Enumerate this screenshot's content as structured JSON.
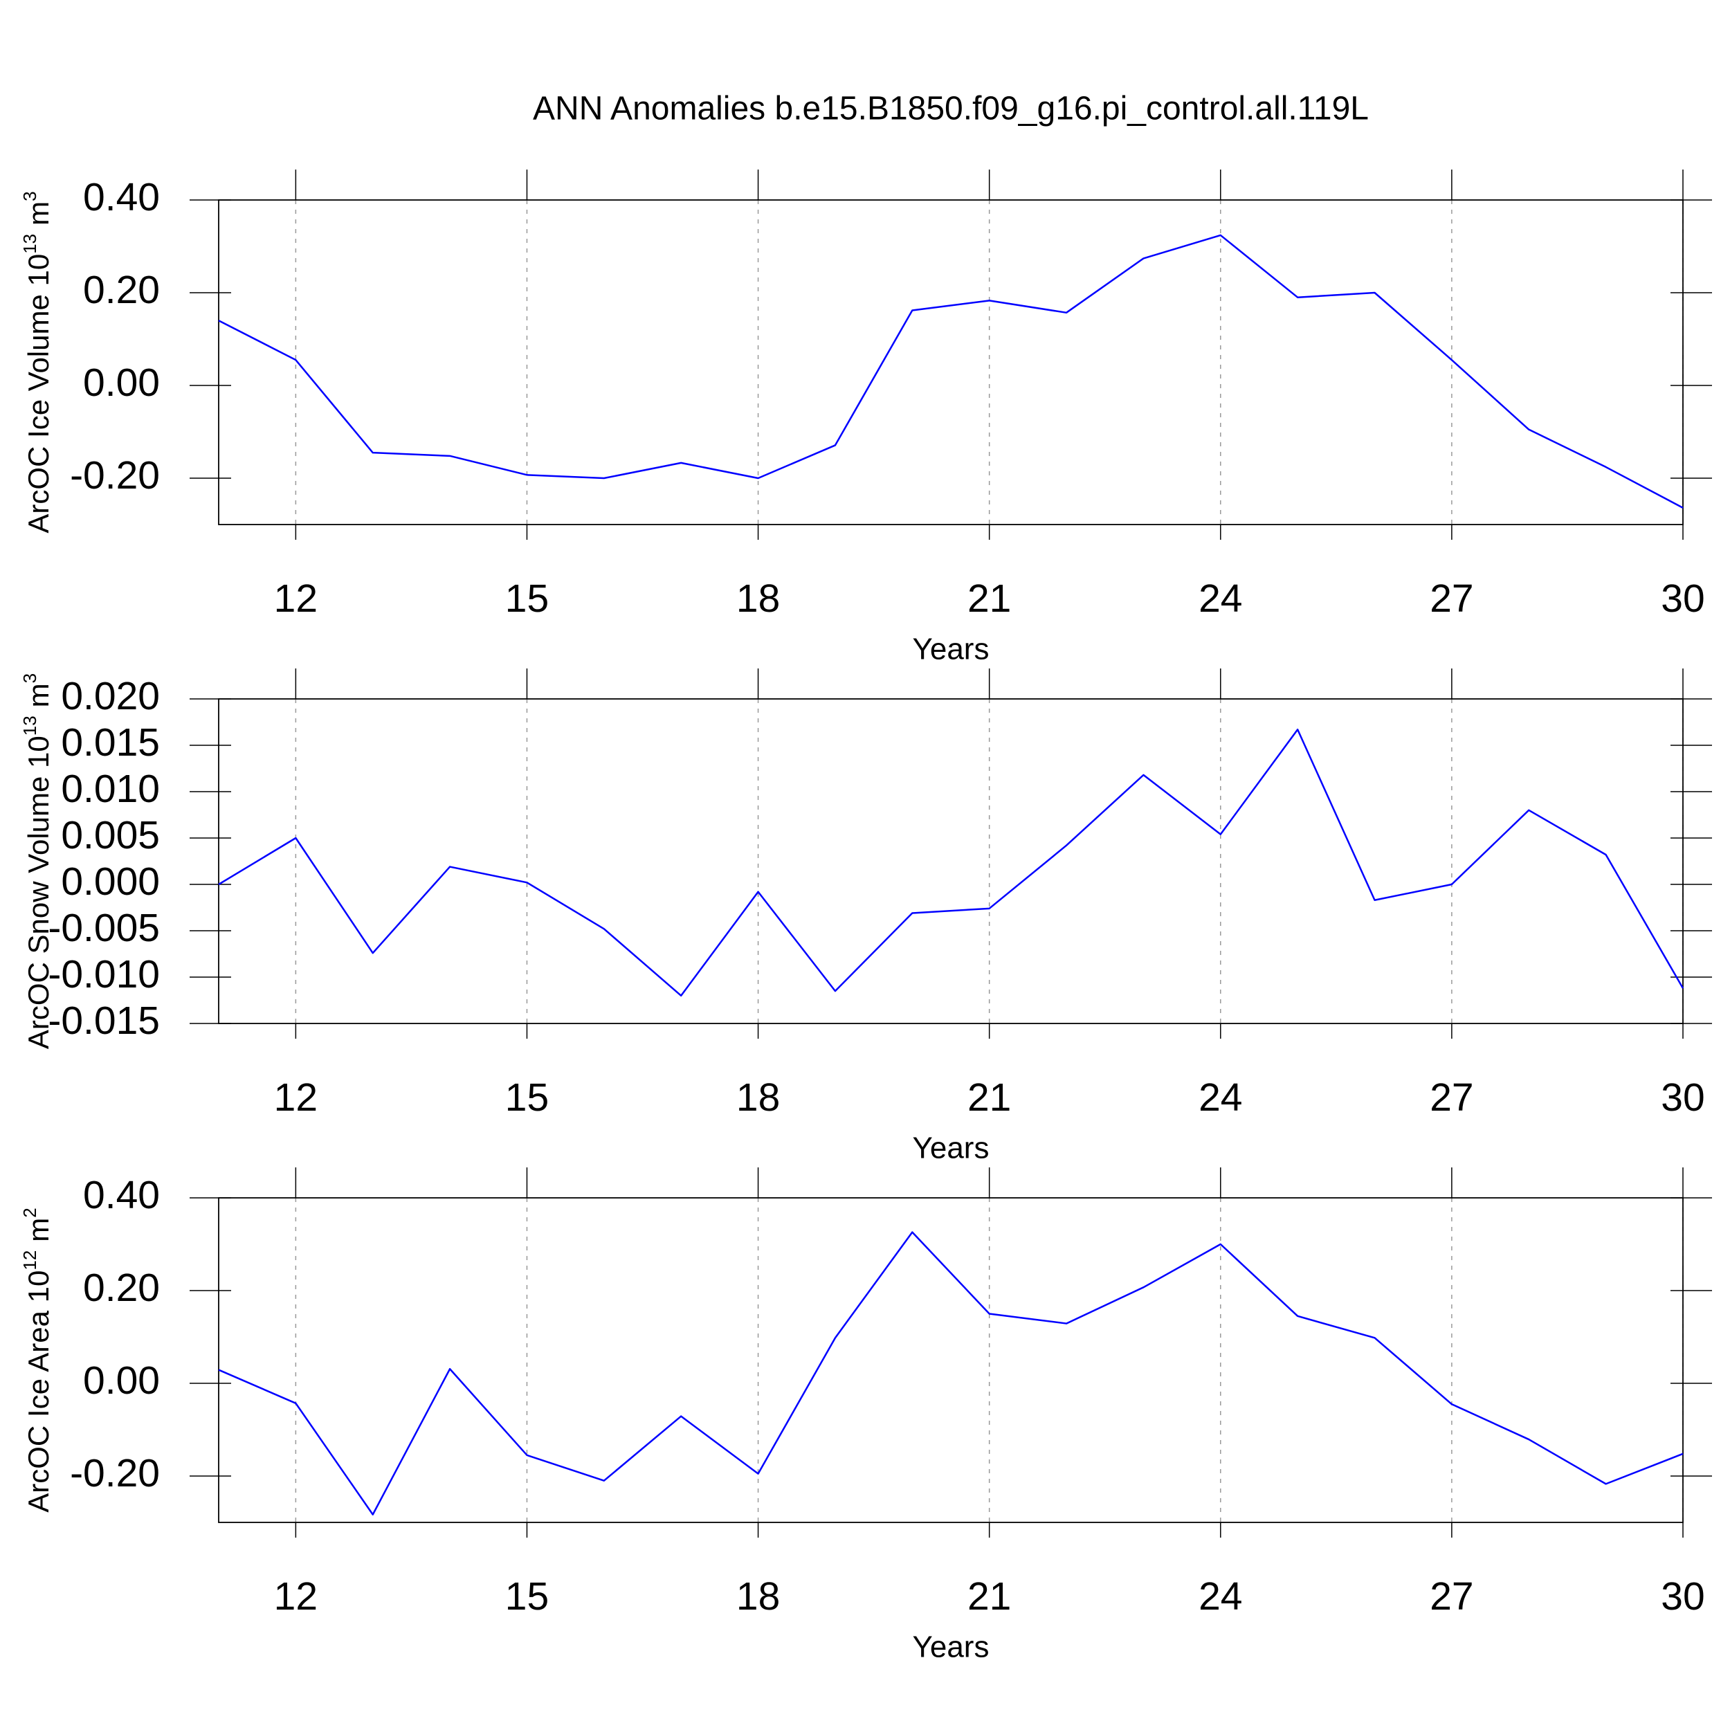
{
  "title": "ANN Anomalies b.e15.B1850.f09_g16.pi_control.all.119L",
  "chart_data": [
    {
      "type": "line",
      "xlabel": "Years",
      "ylabel": "ArcOC Ice Volume 10",
      "ylabel_exponent": "13",
      "ylabel_unit": "m",
      "ylabel_unit_exponent": "3",
      "x": [
        11,
        12,
        13,
        14,
        15,
        16,
        17,
        18,
        19,
        20,
        21,
        22,
        23,
        24,
        25,
        26,
        27,
        28,
        29,
        30
      ],
      "values": [
        0.14,
        0.055,
        -0.145,
        -0.152,
        -0.193,
        -0.2,
        -0.167,
        -0.2,
        -0.129,
        0.162,
        0.183,
        0.157,
        0.274,
        0.324,
        0.19,
        0.2,
        0.055,
        -0.095,
        -0.176,
        -0.264
      ],
      "color": "#0000ff",
      "xlim": [
        11,
        30
      ],
      "xticks": [
        12,
        15,
        18,
        21,
        24,
        27,
        30
      ],
      "ylim": [
        -0.3,
        0.4
      ],
      "yticks": [
        {
          "value": -0.2,
          "label": "-0.20"
        },
        {
          "value": 0,
          "label": "0.00"
        },
        {
          "value": 0.2,
          "label": "0.20"
        },
        {
          "value": 0.4,
          "label": "0.40"
        }
      ],
      "xgrid": true
    },
    {
      "type": "line",
      "xlabel": "Years",
      "ylabel": "ArcOC Snow Volume 10",
      "ylabel_exponent": "13",
      "ylabel_unit": "m",
      "ylabel_unit_exponent": "3",
      "x": [
        11,
        12,
        13,
        14,
        15,
        16,
        17,
        18,
        19,
        20,
        21,
        22,
        23,
        24,
        25,
        26,
        27,
        28,
        29,
        30
      ],
      "values": [
        0.0,
        0.005,
        -0.0074,
        0.0019,
        0.0002,
        -0.0048,
        -0.012,
        -0.0008,
        -0.0115,
        -0.0031,
        -0.0026,
        0.0042,
        0.0118,
        0.0054,
        0.0167,
        -0.0017,
        0.0,
        0.008,
        0.0032,
        -0.0112
      ],
      "color": "#0000ff",
      "xlim": [
        11,
        30
      ],
      "xticks": [
        12,
        15,
        18,
        21,
        24,
        27,
        30
      ],
      "ylim": [
        -0.015,
        0.02
      ],
      "yticks": [
        {
          "value": -0.015,
          "label": "-0.015"
        },
        {
          "value": -0.01,
          "label": "-0.010"
        },
        {
          "value": -0.005,
          "label": "-0.005"
        },
        {
          "value": 0,
          "label": "0.000"
        },
        {
          "value": 0.005,
          "label": "0.005"
        },
        {
          "value": 0.01,
          "label": "0.010"
        },
        {
          "value": 0.015,
          "label": "0.015"
        },
        {
          "value": 0.02,
          "label": "0.020"
        }
      ],
      "xgrid": true
    },
    {
      "type": "line",
      "xlabel": "Years",
      "ylabel": "ArcOC Ice Area 10",
      "ylabel_exponent": "12",
      "ylabel_unit": "m",
      "ylabel_unit_exponent": "2",
      "x": [
        11,
        12,
        13,
        14,
        15,
        16,
        17,
        18,
        19,
        20,
        21,
        22,
        23,
        24,
        25,
        26,
        27,
        28,
        29,
        30
      ],
      "values": [
        0.029,
        -0.043,
        -0.283,
        0.031,
        -0.155,
        -0.21,
        -0.071,
        -0.195,
        0.098,
        0.326,
        0.15,
        0.129,
        0.207,
        0.3,
        0.145,
        0.098,
        -0.045,
        -0.121,
        -0.217,
        -0.152
      ],
      "color": "#0000ff",
      "xlim": [
        11,
        30
      ],
      "xticks": [
        12,
        15,
        18,
        21,
        24,
        27,
        30
      ],
      "ylim": [
        -0.3,
        0.4
      ],
      "yticks": [
        {
          "value": -0.2,
          "label": "-0.20"
        },
        {
          "value": 0,
          "label": "0.00"
        },
        {
          "value": 0.2,
          "label": "0.20"
        },
        {
          "value": 0.4,
          "label": "0.40"
        }
      ],
      "xgrid": true
    }
  ]
}
